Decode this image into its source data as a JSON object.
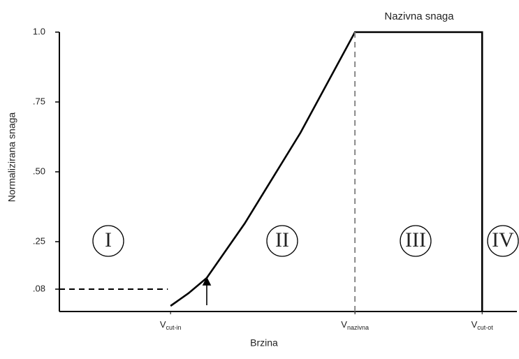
{
  "chart_data": {
    "type": "line",
    "xlabel": "Brzina",
    "ylabel": "Normalizirana snaga",
    "annotation": "Nazivna snaga",
    "xlim": [
      0,
      100
    ],
    "ylim": [
      0,
      1
    ],
    "yticks": [
      {
        "value": 1.0,
        "label": "1.0"
      },
      {
        "value": 0.75,
        "label": ".75"
      },
      {
        "value": 0.5,
        "label": ".50"
      },
      {
        "value": 0.25,
        "label": ".25"
      },
      {
        "value": 0.08,
        "label": ".08"
      }
    ],
    "xticks": [
      {
        "value": 24.3,
        "label": "V",
        "subscript": "cut-in"
      },
      {
        "value": 64.6,
        "label": "V",
        "subscript": "nazivna"
      },
      {
        "value": 92.4,
        "label": "V",
        "subscript": "cut-ot"
      }
    ],
    "regions": [
      "I",
      "II",
      "III",
      "IV"
    ],
    "series": [
      {
        "color": "#000000",
        "x": [
          24.3,
          28.2,
          32.2,
          40.5,
          52.7,
          64.6,
          92.4,
          92.4
        ],
        "values": [
          0.02,
          0.065,
          0.12,
          0.315,
          0.64,
          1.0,
          1.0,
          0
        ]
      },
      {
        "color": "#000000",
        "dash": true,
        "x": [
          0,
          23.7
        ],
        "values": [
          0.08,
          0.08
        ]
      },
      {
        "color": "#888888",
        "dash": true,
        "x": [
          64.6,
          64.6
        ],
        "values": [
          1.0,
          0
        ]
      }
    ]
  }
}
